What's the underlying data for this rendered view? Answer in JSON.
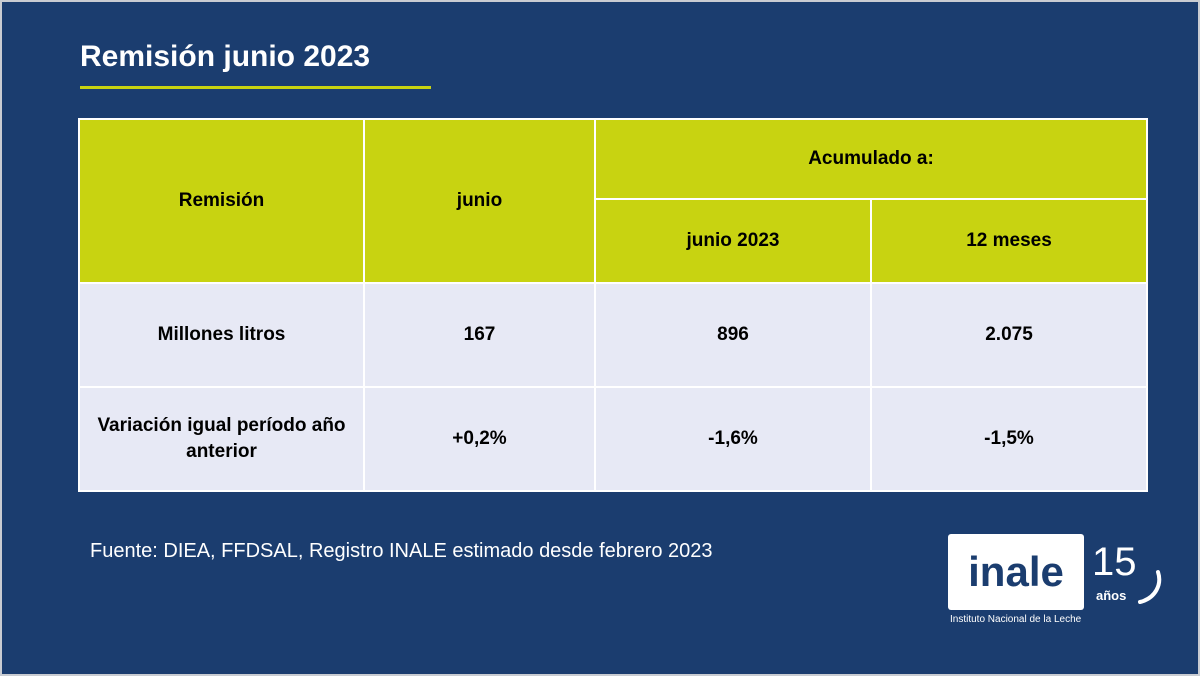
{
  "slide": {
    "title": "Remisión junio 2023",
    "source": "Fuente: DIEA, FFDSAL, Registro INALE estimado desde febrero 2023"
  },
  "table": {
    "headers": {
      "remision": "Remisión",
      "junio": "junio",
      "acumulado": "Acumulado a:",
      "junio_2023": "junio 2023",
      "doce_meses": "12 meses"
    },
    "rows": [
      {
        "label": "Millones litros",
        "junio": "167",
        "junio_2023": "896",
        "doce_meses": "2.075"
      },
      {
        "label": "Variación igual período año anterior",
        "junio": "+0,2%",
        "junio_2023": "-1,6%",
        "doce_meses": "-1,5%"
      }
    ]
  },
  "logo": {
    "wordmark": "inale",
    "subtitle": "Instituto Nacional de la Leche",
    "anniversary_number": "15",
    "anniversary_word": "años"
  },
  "colors": {
    "background": "#1b3d6f",
    "accent": "#c8d311",
    "row_fill": "#e7e9f5"
  }
}
